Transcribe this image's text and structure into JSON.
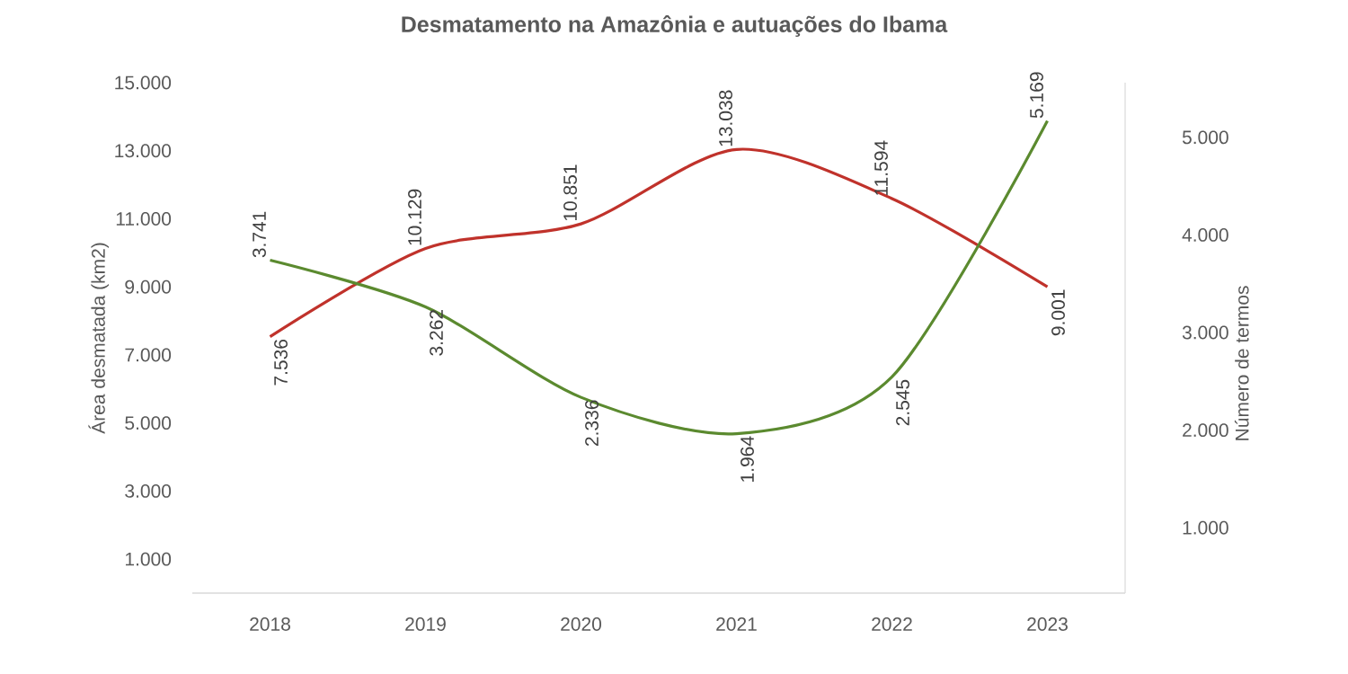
{
  "chart_data": {
    "type": "line",
    "title": "Desmatamento na Amazônia e autuações do Ibama",
    "ylabel": "Área desmatada (km2)",
    "y2label": "Número de termos",
    "categories": [
      "2018",
      "2019",
      "2020",
      "2021",
      "2022",
      "2023"
    ],
    "series": [
      {
        "color": "#c0322b",
        "values": [
          7536,
          10129,
          10851,
          13038,
          11594,
          9001
        ],
        "value_labels": [
          "7.536",
          "10.129",
          "10.851",
          "13.038",
          "11.594",
          "9.001"
        ]
      },
      {
        "color": "#5b8a2f",
        "axis": "y2",
        "values": [
          3741,
          3262,
          2336,
          1964,
          2545,
          5169
        ],
        "value_labels": [
          "3.741",
          "3.262",
          "2.336",
          "1.964",
          "2.545",
          "5.169"
        ]
      }
    ],
    "ylim": [
      0,
      15000
    ],
    "yticks": [
      {
        "value": 1000,
        "label": "1.000"
      },
      {
        "value": 3000,
        "label": "3.000"
      },
      {
        "value": 5000,
        "label": "5.000"
      },
      {
        "value": 7000,
        "label": "7.000"
      },
      {
        "value": 9000,
        "label": "9.000"
      },
      {
        "value": 11000,
        "label": "11.000"
      },
      {
        "value": 13000,
        "label": "13.000"
      },
      {
        "value": 15000,
        "label": "15.000"
      }
    ],
    "y2lim": [
      330,
      5560
    ],
    "y2ticks": [
      {
        "value": 1000,
        "label": "1.000"
      },
      {
        "value": 2000,
        "label": "2.000"
      },
      {
        "value": 3000,
        "label": "3.000"
      },
      {
        "value": 4000,
        "label": "4.000"
      },
      {
        "value": 5000,
        "label": "5.000"
      }
    ],
    "grid": false,
    "marker": "none",
    "line_style": "solid"
  }
}
